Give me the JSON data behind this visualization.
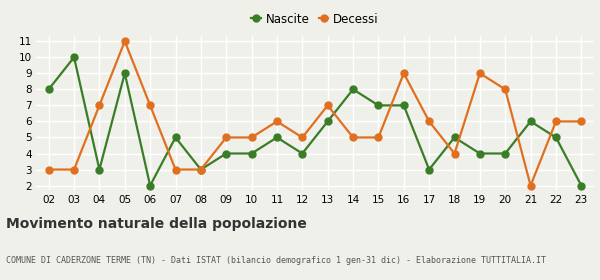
{
  "years": [
    "02",
    "03",
    "04",
    "05",
    "06",
    "07",
    "08",
    "09",
    "10",
    "11",
    "12",
    "13",
    "14",
    "15",
    "16",
    "17",
    "18",
    "19",
    "20",
    "21",
    "22",
    "23"
  ],
  "nascite": [
    8,
    10,
    3,
    9,
    2,
    5,
    3,
    4,
    4,
    5,
    4,
    6,
    8,
    7,
    7,
    3,
    5,
    4,
    4,
    6,
    5,
    2
  ],
  "decessi": [
    3,
    3,
    7,
    11,
    7,
    3,
    3,
    5,
    5,
    6,
    5,
    7,
    5,
    5,
    9,
    6,
    4,
    9,
    8,
    2,
    6,
    6
  ],
  "nascite_color": "#3a7d27",
  "decessi_color": "#e07020",
  "title": "Movimento naturale della popolazione",
  "subtitle": "COMUNE DI CADERZONE TERME (TN) - Dati ISTAT (bilancio demografico 1 gen-31 dic) - Elaborazione TUTTITALIA.IT",
  "legend_labels": [
    "Nascite",
    "Decessi"
  ],
  "ylim_min": 1.7,
  "ylim_max": 11.3,
  "yticks": [
    2,
    3,
    4,
    5,
    6,
    7,
    8,
    9,
    10,
    11
  ],
  "background_color": "#f0f0eb",
  "grid_color": "#ffffff",
  "marker": "o",
  "markersize": 5,
  "linewidth": 1.6,
  "title_fontsize": 10,
  "subtitle_fontsize": 6,
  "tick_fontsize": 7.5
}
